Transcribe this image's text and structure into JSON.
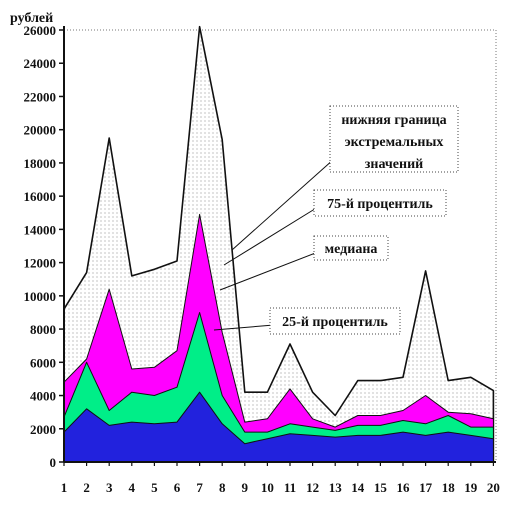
{
  "chart_data": {
    "type": "area",
    "ylabel": "рублей",
    "ylim": [
      0,
      26000
    ],
    "yticks": [
      0,
      2000,
      4000,
      6000,
      8000,
      10000,
      12000,
      14000,
      16000,
      18000,
      20000,
      22000,
      24000,
      26000
    ],
    "x": [
      1,
      2,
      3,
      4,
      5,
      6,
      7,
      8,
      9,
      10,
      11,
      12,
      13,
      14,
      15,
      16,
      17,
      18,
      19,
      20
    ],
    "grid": false,
    "series": [
      {
        "name": "нижняя граница экстремальных значений",
        "color": "#eeeeee",
        "values": [
          9200,
          11400,
          19500,
          11200,
          11600,
          12100,
          26200,
          19400,
          4200,
          4200,
          7100,
          4200,
          2800,
          4900,
          4900,
          5100,
          11500,
          4900,
          5100,
          4300
        ]
      },
      {
        "name": "75-й процентиль",
        "color": "#ff00ff",
        "values": [
          4800,
          6200,
          10400,
          5600,
          5700,
          6700,
          14900,
          7800,
          2400,
          2600,
          4400,
          2600,
          2100,
          2800,
          2800,
          3100,
          4000,
          3000,
          2900,
          2600
        ]
      },
      {
        "name": "медиана",
        "color": "#00ee88",
        "values": [
          2700,
          6000,
          3100,
          4200,
          4000,
          4500,
          9000,
          4000,
          1800,
          1800,
          2300,
          2100,
          1900,
          2200,
          2200,
          2500,
          2300,
          2800,
          2100,
          2100
        ]
      },
      {
        "name": "25-й процентиль",
        "color": "#2222dd",
        "values": [
          1800,
          3200,
          2200,
          2400,
          2300,
          2400,
          4200,
          2300,
          1100,
          1400,
          1700,
          1600,
          1500,
          1600,
          1600,
          1800,
          1600,
          1800,
          1600,
          1400
        ]
      }
    ],
    "annotations": [
      {
        "lines": [
          "нижняя граница",
          "экстремальных",
          "значений"
        ],
        "series": 0
      },
      {
        "lines": [
          "75-й процентиль"
        ],
        "series": 1
      },
      {
        "lines": [
          "медиана"
        ],
        "series": 2
      },
      {
        "lines": [
          "25-й процентиль"
        ],
        "series": 3
      }
    ]
  }
}
